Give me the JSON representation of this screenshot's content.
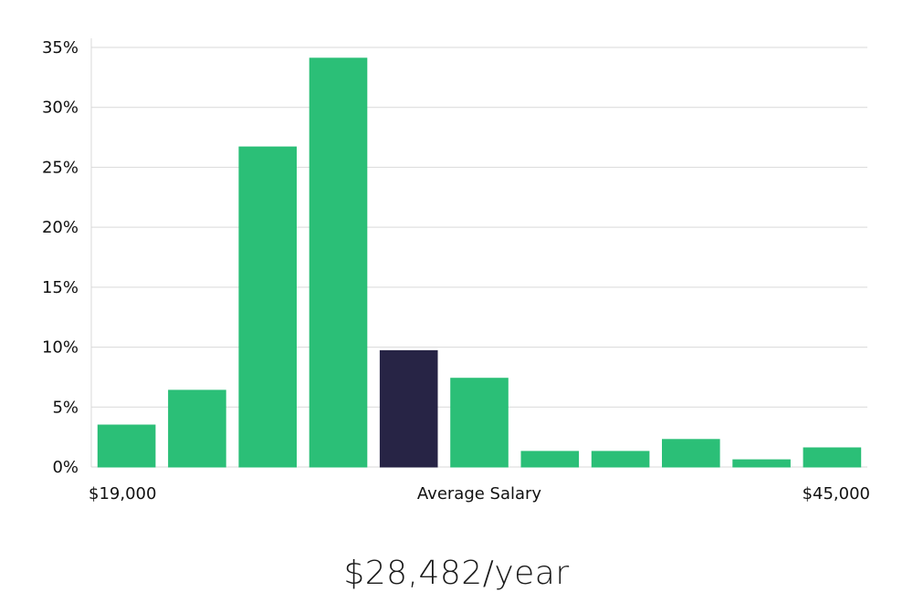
{
  "chart_data": {
    "type": "bar",
    "values": [
      3.5,
      6.4,
      26.7,
      34.1,
      9.7,
      7.4,
      1.3,
      1.3,
      2.3,
      0.6,
      1.6
    ],
    "highlight_index": 4,
    "ylim": [
      0,
      35
    ],
    "y_ticks": [
      "0%",
      "5%",
      "10%",
      "15%",
      "20%",
      "25%",
      "30%",
      "35%"
    ],
    "x_labels": {
      "left": "$19,000",
      "center": "Average Salary",
      "right": "$45,000"
    },
    "grid": true,
    "colors": {
      "bar": "#2bbf77",
      "highlight": "#272445",
      "grid": "#d9d9d9"
    }
  },
  "salary_caption": "$28,482/year"
}
